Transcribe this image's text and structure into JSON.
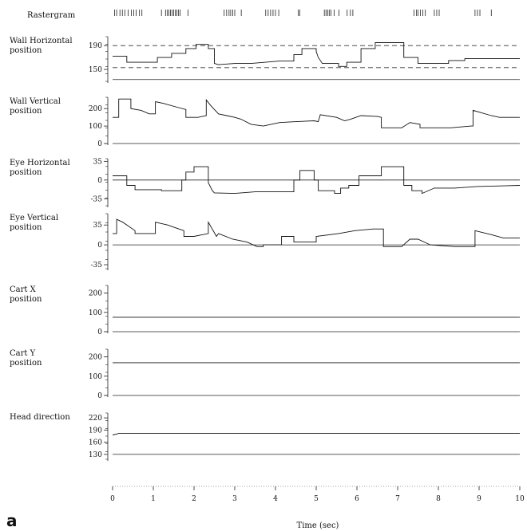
{
  "chart_data": {
    "type": "line",
    "panel_letter": "a",
    "xlabel": "Time (sec)",
    "xlim": [
      0,
      10
    ],
    "x_ticks": [
      "0",
      "1",
      "2",
      "3",
      "4",
      "5",
      "6",
      "7",
      "8",
      "9",
      "10"
    ],
    "raster": {
      "label": "Rastergram",
      "spikes": [
        0.05,
        0.1,
        0.18,
        0.24,
        0.3,
        0.38,
        0.46,
        0.52,
        0.58,
        0.66,
        0.72,
        1.2,
        1.3,
        1.34,
        1.38,
        1.42,
        1.46,
        1.5,
        1.54,
        1.58,
        1.62,
        1.66,
        1.85,
        2.74,
        2.8,
        2.86,
        2.9,
        2.95,
        3.0,
        3.16,
        3.76,
        3.82,
        3.88,
        3.94,
        4.0,
        4.08,
        4.56,
        4.6,
        5.2,
        5.24,
        5.28,
        5.32,
        5.36,
        5.44,
        5.56,
        5.76,
        5.84,
        5.9,
        7.4,
        7.46,
        7.5,
        7.56,
        7.62,
        7.68,
        7.9,
        7.96,
        8.02,
        8.9,
        8.96,
        9.02,
        9.3
      ]
    },
    "panels": [
      {
        "label": [
          "Wall Horizontal",
          "position"
        ],
        "ylim": [
          130,
          205
        ],
        "ticks": [
          190,
          150
        ],
        "refs": [
          190,
          153
        ],
        "zero_line": 133,
        "series": [
          {
            "x": [
              0,
              0.35,
              0.35,
              1.1,
              1.1,
              1.45,
              1.45,
              1.8,
              1.8,
              2.05,
              2.05,
              2.35,
              2.35,
              2.5,
              2.5,
              2.6,
              3.0,
              3.4,
              3.75,
              4.1,
              4.45,
              4.45,
              4.65,
              4.65,
              5.0,
              5.0,
              5.05,
              5.15,
              5.55,
              5.55,
              5.75,
              5.75,
              6.1,
              6.1,
              6.45,
              6.45,
              7.15,
              7.15,
              7.5,
              7.5,
              8.25,
              8.25,
              8.65,
              8.65,
              10
            ],
            "y": [
              172,
              172,
              162,
              162,
              170,
              170,
              177,
              177,
              185,
              185,
              192,
              192,
              185,
              185,
              160,
              158,
              160,
              160,
              162,
              164,
              164,
              175,
              175,
              185,
              185,
              180,
              170,
              160,
              160,
              155,
              155,
              162,
              162,
              185,
              185,
              195,
              195,
              170,
              170,
              160,
              160,
              165,
              165,
              168,
              168
            ]
          }
        ]
      },
      {
        "label": [
          "Wall Vertical",
          "position"
        ],
        "ylim": [
          0,
          265
        ],
        "ticks": [
          200,
          100,
          0
        ],
        "zero_line": 0,
        "series": [
          {
            "x": [
              0,
              0.15,
              0.15,
              0.45,
              0.45,
              0.7,
              0.9,
              1.05,
              1.05,
              1.25,
              1.55,
              1.8,
              1.8,
              2.1,
              2.3,
              2.3,
              2.4,
              2.6,
              2.8,
              3.0,
              3.15,
              3.4,
              3.7,
              4.1,
              4.5,
              4.95,
              5.05,
              5.1,
              5.5,
              5.7,
              5.85,
              6.1,
              6.5,
              6.6,
              6.6,
              7.1,
              7.3,
              7.55,
              7.55,
              8.3,
              8.8,
              8.85,
              8.85,
              9.3,
              9.5,
              10
            ],
            "y": [
              150,
              150,
              255,
              255,
              200,
              190,
              170,
              170,
              240,
              230,
              210,
              195,
              150,
              150,
              160,
              250,
              220,
              170,
              160,
              150,
              140,
              110,
              100,
              120,
              125,
              130,
              125,
              165,
              150,
              130,
              140,
              160,
              155,
              150,
              90,
              90,
              120,
              110,
              90,
              90,
              100,
              100,
              190,
              160,
              150,
              150
            ]
          }
        ]
      },
      {
        "label": [
          "Eye Horizontal",
          "position"
        ],
        "ylim": [
          -48,
          40
        ],
        "ticks": [
          35,
          0,
          -35
        ],
        "zero_line": 0,
        "series": [
          {
            "x": [
              0,
              0.35,
              0.35,
              0.55,
              0.55,
              1.2,
              1.2,
              1.7,
              1.7,
              1.8,
              1.8,
              2.0,
              2.0,
              2.35,
              2.35,
              2.45,
              2.5,
              3.0,
              3.5,
              4.45,
              4.45,
              4.6,
              4.6,
              4.95,
              4.95,
              5.05,
              5.05,
              5.45,
              5.45,
              5.6,
              5.6,
              5.8,
              5.8,
              6.05,
              6.05,
              6.6,
              6.6,
              7.15,
              7.15,
              7.35,
              7.35,
              7.6,
              7.6,
              7.9,
              8.4,
              8.95,
              8.95,
              10
            ],
            "y": [
              8,
              8,
              -10,
              -10,
              -18,
              -18,
              -20,
              -20,
              0,
              0,
              15,
              15,
              25,
              25,
              -5,
              -20,
              -24,
              -25,
              -22,
              -22,
              0,
              0,
              18,
              18,
              0,
              0,
              -20,
              -20,
              -25,
              -25,
              -15,
              -15,
              -10,
              -10,
              8,
              8,
              25,
              25,
              -10,
              -10,
              -20,
              -20,
              -25,
              -15,
              -15,
              -12,
              -12,
              -10
            ]
          }
        ]
      },
      {
        "label": [
          "Eye Vertical",
          "position"
        ],
        "ylim": [
          -42,
          55
        ],
        "ticks": [
          35,
          0,
          -35
        ],
        "zero_line": 0,
        "series": [
          {
            "x": [
              0,
              0.1,
              0.1,
              0.25,
              0.55,
              0.55,
              1.05,
              1.05,
              1.35,
              1.55,
              1.75,
              1.75,
              2.0,
              2.35,
              2.35,
              2.55,
              2.6,
              2.95,
              3.3,
              3.55,
              3.7,
              3.7,
              4.15,
              4.15,
              4.45,
              4.45,
              5.0,
              5.0,
              5.55,
              5.95,
              6.4,
              6.65,
              6.65,
              7.1,
              7.3,
              7.5,
              7.8,
              8.4,
              8.9,
              8.9,
              9.3,
              9.6,
              10
            ],
            "y": [
              20,
              20,
              45,
              40,
              25,
              20,
              20,
              40,
              35,
              30,
              25,
              15,
              15,
              20,
              40,
              15,
              20,
              10,
              5,
              -3,
              -3,
              0,
              0,
              15,
              15,
              5,
              5,
              15,
              20,
              25,
              28,
              28,
              -3,
              -3,
              10,
              10,
              0,
              -3,
              -3,
              25,
              18,
              12,
              12
            ]
          }
        ]
      },
      {
        "label": [
          "Cart X",
          "position"
        ],
        "ylim": [
          0,
          240
        ],
        "ticks": [
          200,
          100,
          0
        ],
        "zero_line": 0,
        "series": [
          {
            "x": [
              0,
              10
            ],
            "y": [
              75,
              75
            ]
          }
        ]
      },
      {
        "label": [
          "Cart Y",
          "position"
        ],
        "ylim": [
          0,
          240
        ],
        "ticks": [
          200,
          100,
          0
        ],
        "zero_line": 0,
        "series": [
          {
            "x": [
              0,
              10
            ],
            "y": [
              170,
              170
            ]
          }
        ]
      },
      {
        "label": [
          "Head direction"
        ],
        "ylim": [
          118,
          232
        ],
        "ticks": [
          220,
          190,
          160,
          130
        ],
        "zero_line": 130,
        "series": [
          {
            "x": [
              0,
              0.1,
              0.15,
              10
            ],
            "y": [
              178,
              180,
              182,
              182
            ]
          }
        ]
      }
    ]
  }
}
